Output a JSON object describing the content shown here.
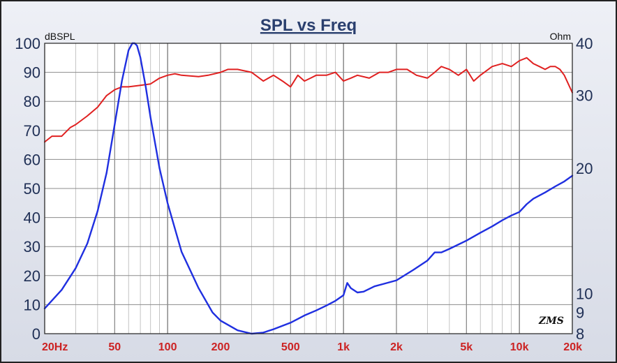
{
  "chart_data": {
    "type": "line",
    "title": "SPL vs Freq",
    "left_axis": {
      "unit": "dBSPL",
      "range": [
        0,
        100
      ],
      "ticks": [
        0,
        10,
        20,
        30,
        40,
        50,
        60,
        70,
        80,
        90,
        100
      ]
    },
    "right_axis": {
      "unit": "Ohm",
      "scale": "log",
      "range": [
        8,
        40
      ],
      "ticks": [
        "8",
        "9",
        "10",
        "20",
        "30",
        "40"
      ],
      "tick_values": [
        8,
        9,
        10,
        20,
        30,
        40
      ]
    },
    "x_axis": {
      "scale": "log",
      "range": [
        20,
        20000
      ],
      "ticks": [
        20,
        50,
        100,
        200,
        500,
        1000,
        2000,
        5000,
        10000,
        20000
      ],
      "tick_labels": [
        "20Hz",
        "50",
        "100",
        "200",
        "500",
        "1k",
        "2k",
        "5k",
        "10k",
        "20k"
      ]
    },
    "grid": true,
    "logo": "ZMS",
    "colors": {
      "spl": "#e02020",
      "impedance": "#1f2fe0",
      "grid": "#888888",
      "plot_bg": "#ffffff",
      "title": "#2a3f6e"
    },
    "series": [
      {
        "axis": "left",
        "color": "#e02020",
        "x": [
          20,
          22,
          25,
          28,
          30,
          35,
          40,
          45,
          50,
          55,
          60,
          70,
          80,
          90,
          100,
          110,
          120,
          150,
          170,
          200,
          220,
          250,
          300,
          350,
          400,
          450,
          500,
          550,
          600,
          650,
          700,
          800,
          900,
          1000,
          1100,
          1200,
          1400,
          1600,
          1800,
          2000,
          2300,
          2600,
          3000,
          3300,
          3600,
          4000,
          4500,
          5000,
          5500,
          6000,
          7000,
          8000,
          9000,
          10000,
          11000,
          12000,
          13000,
          14000,
          15000,
          16000,
          17000,
          18000,
          20000
        ],
        "y": [
          66,
          68,
          68,
          71,
          72,
          75,
          78,
          82,
          84,
          85,
          85,
          85.5,
          86,
          88,
          89,
          89.5,
          89,
          88.5,
          89,
          90,
          91,
          91,
          90,
          87,
          89,
          87,
          85,
          89,
          87,
          88,
          89,
          89,
          90,
          87,
          88,
          89,
          88,
          90,
          90,
          91,
          91,
          89,
          88,
          90,
          92,
          91,
          89,
          91,
          87,
          89,
          92,
          93,
          92,
          94,
          95,
          93,
          92,
          91,
          92,
          92,
          91,
          89,
          83
        ]
      },
      {
        "axis": "right",
        "color": "#1f2fe0",
        "x": [
          20,
          25,
          30,
          35,
          40,
          45,
          50,
          55,
          60,
          63,
          65,
          67,
          70,
          75,
          80,
          90,
          100,
          120,
          150,
          180,
          200,
          250,
          300,
          350,
          400,
          500,
          600,
          700,
          800,
          900,
          1000,
          1050,
          1100,
          1200,
          1300,
          1500,
          1700,
          2000,
          2500,
          3000,
          3300,
          3600,
          4000,
          5000,
          6000,
          7000,
          8000,
          9000,
          10000,
          11000,
          12000,
          14000,
          16000,
          18000,
          20000
        ],
        "y": [
          9.2,
          10.2,
          11.5,
          13.2,
          15.8,
          19.5,
          25.5,
          32.5,
          38.5,
          40,
          40,
          39.5,
          37,
          31.5,
          26.5,
          20,
          16.5,
          12.6,
          10.3,
          9.0,
          8.6,
          8.15,
          8.0,
          8.05,
          8.2,
          8.5,
          8.85,
          9.1,
          9.35,
          9.6,
          9.9,
          10.6,
          10.3,
          10.05,
          10.1,
          10.4,
          10.55,
          10.75,
          11.4,
          12.0,
          12.55,
          12.55,
          12.8,
          13.4,
          14.0,
          14.5,
          15.0,
          15.4,
          15.7,
          16.4,
          16.9,
          17.5,
          18.1,
          18.6,
          19.2
        ]
      }
    ]
  }
}
